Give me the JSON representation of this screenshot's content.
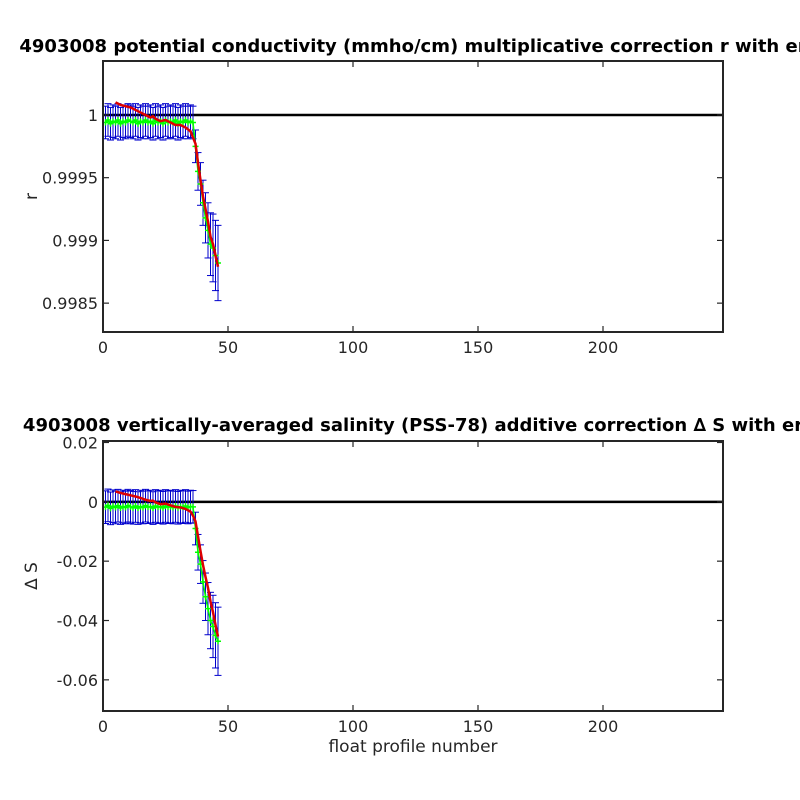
{
  "xlabel": "float profile number",
  "colors": {
    "series_mean": "#00ff00",
    "errorbar": "#0000cc",
    "fit": "#dd0000",
    "reference": "#000000"
  },
  "chart_data": [
    {
      "type": "line",
      "title": "4903008 potential conductivity (mmho/cm) multiplicative correction r with er",
      "xlabel": "",
      "ylabel": "r",
      "xlim": [
        0,
        248
      ],
      "ylim": [
        0.99827,
        1.00043
      ],
      "xticks": [
        0,
        50,
        100,
        150,
        200
      ],
      "xtick_labels": [
        "0",
        "50",
        "100",
        "150",
        "200"
      ],
      "yticks": [
        0.9985,
        0.999,
        0.9995,
        1
      ],
      "ytick_labels": [
        "0.9985",
        "0.999",
        "0.9995",
        "1"
      ],
      "grid": false,
      "reference_line": 1,
      "series": [
        {
          "role": "correction-with-error",
          "x": [
            1,
            2,
            3,
            4,
            5,
            6,
            7,
            8,
            9,
            10,
            11,
            12,
            13,
            14,
            15,
            16,
            17,
            18,
            19,
            20,
            21,
            22,
            23,
            24,
            25,
            26,
            27,
            28,
            29,
            30,
            31,
            32,
            33,
            34,
            35,
            36,
            37,
            38,
            39,
            40,
            41,
            42,
            43,
            44,
            45,
            46
          ],
          "y": [
            0.99994,
            0.99996,
            0.99993,
            0.99995,
            0.99994,
            0.99996,
            0.99993,
            0.99995,
            0.99994,
            0.99996,
            0.99995,
            0.99994,
            0.99996,
            0.99993,
            0.99995,
            0.99994,
            0.99996,
            0.99994,
            0.99995,
            0.99993,
            0.99996,
            0.99994,
            0.99995,
            0.99993,
            0.99996,
            0.99994,
            0.99995,
            0.99994,
            0.99996,
            0.99993,
            0.99995,
            0.99994,
            0.99996,
            0.99994,
            0.99995,
            0.99994,
            0.99975,
            0.99955,
            0.99945,
            0.9993,
            0.99918,
            0.99908,
            0.99897,
            0.99894,
            0.99888,
            0.99882
          ],
          "err": [
            0.00013,
            0.00013,
            0.00013,
            0.00013,
            0.00013,
            0.00013,
            0.00013,
            0.00013,
            0.00013,
            0.00013,
            0.00013,
            0.00013,
            0.00013,
            0.00013,
            0.00013,
            0.00013,
            0.00013,
            0.00013,
            0.00013,
            0.00013,
            0.00013,
            0.00013,
            0.00013,
            0.00013,
            0.00013,
            0.00013,
            0.00013,
            0.00013,
            0.00013,
            0.00013,
            0.00013,
            0.00013,
            0.00013,
            0.00013,
            0.00013,
            0.00013,
            0.00013,
            0.00015,
            0.00017,
            0.00018,
            0.0002,
            0.00022,
            0.00025,
            0.00027,
            0.00028,
            0.0003
          ]
        },
        {
          "role": "fit",
          "x": [
            5,
            7,
            9,
            11,
            13,
            15,
            17,
            19,
            20,
            21,
            23,
            25,
            27,
            29,
            31,
            33,
            35,
            36,
            37,
            38,
            39,
            40,
            41,
            42,
            43,
            44,
            45,
            46
          ],
          "y": [
            1.0001,
            1.00008,
            1.00007,
            1.00006,
            1.00004,
            1.00002,
            1.0,
            0.99998,
            0.99999,
            0.99997,
            0.99995,
            0.99996,
            0.99994,
            0.99992,
            0.99992,
            0.9999,
            0.99987,
            0.99982,
            0.99977,
            0.99962,
            0.99948,
            0.99935,
            0.99925,
            0.99915,
            0.99903,
            0.99897,
            0.99888,
            0.99879
          ]
        }
      ]
    },
    {
      "type": "line",
      "title": "4903008 vertically-averaged salinity (PSS-78) additive correction ∆ S with er",
      "xlabel": "float profile number",
      "ylabel": "∆ S",
      "xlim": [
        0,
        248
      ],
      "ylim": [
        -0.0705,
        0.0205
      ],
      "xticks": [
        0,
        50,
        100,
        150,
        200
      ],
      "xtick_labels": [
        "0",
        "50",
        "100",
        "150",
        "200"
      ],
      "yticks": [
        -0.06,
        -0.04,
        -0.02,
        0,
        0.02
      ],
      "ytick_labels": [
        "-0.06",
        "-0.04",
        "-0.02",
        "0",
        "0.02"
      ],
      "grid": false,
      "reference_line": 0,
      "series": [
        {
          "role": "correction-with-error",
          "x": [
            1,
            2,
            3,
            4,
            5,
            6,
            7,
            8,
            9,
            10,
            11,
            12,
            13,
            14,
            15,
            16,
            17,
            18,
            19,
            20,
            21,
            22,
            23,
            24,
            25,
            26,
            27,
            28,
            29,
            30,
            31,
            32,
            33,
            34,
            35,
            36,
            37,
            38,
            39,
            40,
            41,
            42,
            43,
            44,
            45,
            46
          ],
          "y": [
            -0.0018,
            -0.0012,
            -0.0022,
            -0.0015,
            -0.0019,
            -0.0013,
            -0.0021,
            -0.0016,
            -0.0019,
            -0.0013,
            -0.0017,
            -0.002,
            -0.0014,
            -0.0021,
            -0.0016,
            -0.0019,
            -0.0013,
            -0.0018,
            -0.0016,
            -0.0021,
            -0.0014,
            -0.0018,
            -0.0016,
            -0.002,
            -0.0014,
            -0.0018,
            -0.0016,
            -0.0019,
            -0.0014,
            -0.002,
            -0.0016,
            -0.0018,
            -0.0014,
            -0.0019,
            -0.0016,
            -0.0017,
            -0.009,
            -0.017,
            -0.021,
            -0.027,
            -0.032,
            -0.036,
            -0.04,
            -0.042,
            -0.045,
            -0.047
          ],
          "err": [
            0.0055,
            0.0055,
            0.0055,
            0.0055,
            0.0055,
            0.0055,
            0.0055,
            0.0055,
            0.0055,
            0.0055,
            0.0055,
            0.0055,
            0.0055,
            0.0055,
            0.0055,
            0.0055,
            0.0055,
            0.0055,
            0.0055,
            0.0055,
            0.0055,
            0.0055,
            0.0055,
            0.0055,
            0.0055,
            0.0055,
            0.0055,
            0.0055,
            0.0055,
            0.0055,
            0.0055,
            0.0055,
            0.0055,
            0.0055,
            0.0055,
            0.0055,
            0.0055,
            0.006,
            0.0065,
            0.0072,
            0.008,
            0.0088,
            0.0095,
            0.0105,
            0.011,
            0.0115
          ]
        },
        {
          "role": "fit",
          "x": [
            5,
            7,
            9,
            11,
            13,
            15,
            17,
            19,
            20,
            21,
            23,
            25,
            27,
            29,
            31,
            33,
            35,
            36,
            37,
            38,
            39,
            40,
            41,
            42,
            43,
            44,
            45,
            46
          ],
          "y": [
            0.0035,
            0.003,
            0.0026,
            0.0022,
            0.0018,
            0.0013,
            0.0007,
            0.0003,
            0.0004,
            -0.0002,
            -0.0008,
            -0.0006,
            -0.0012,
            -0.0017,
            -0.0019,
            -0.0024,
            -0.0033,
            -0.0047,
            -0.0066,
            -0.0116,
            -0.0166,
            -0.0213,
            -0.0253,
            -0.029,
            -0.0336,
            -0.0372,
            -0.0415,
            -0.0454
          ]
        }
      ]
    }
  ]
}
